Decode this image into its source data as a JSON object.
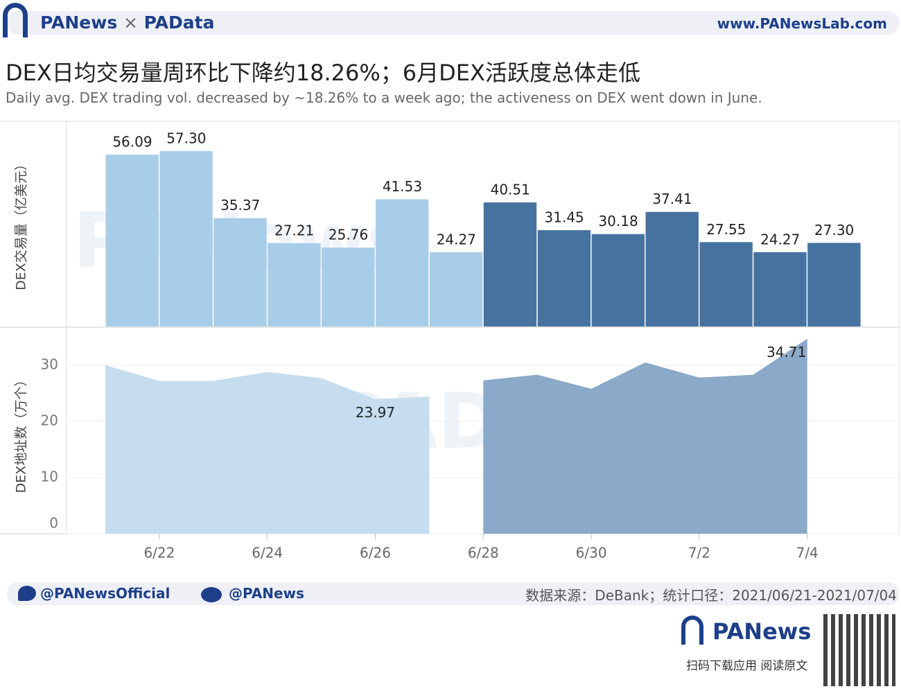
{
  "header": {
    "brand_left": "PANews",
    "brand_right": "PAData",
    "separator": "×",
    "url": "www.PANewsLab.com"
  },
  "title": "DEX日均交易量周环比下降约18.26%；6月DEX活跃度总体走低",
  "subtitle": "Daily avg. DEX trading vol. decreased by ~18.26% to a week ago; the activeness on DEX went down in June.",
  "watermarks": [
    "PANews",
    "PAData"
  ],
  "chart_data": [
    {
      "type": "bar",
      "ylabel": "DEX交易量（亿美元）",
      "ylim": [
        0,
        67
      ],
      "series": [
        {
          "color": "#a8cde8",
          "values": [
            56.09,
            57.3,
            35.37,
            27.21,
            25.76,
            41.53,
            24.27,
            null,
            null,
            null,
            null,
            null,
            null,
            null
          ],
          "value_labels": [
            "56.09",
            "57.30",
            "35.37",
            "27.21",
            "25.76",
            "41.53",
            "24.27",
            null,
            null,
            null,
            null,
            null,
            null,
            null
          ]
        },
        {
          "color": "#4672a0",
          "values": [
            null,
            null,
            null,
            null,
            null,
            null,
            null,
            40.51,
            31.45,
            30.18,
            37.41,
            27.55,
            24.27,
            27.3
          ],
          "value_labels": [
            null,
            null,
            null,
            null,
            null,
            null,
            null,
            "40.51",
            "31.45",
            "30.18",
            "37.41",
            "27.55",
            "24.27",
            "27.30"
          ]
        }
      ]
    },
    {
      "type": "area",
      "ylabel": "DEX地址数（万个）",
      "ylim": [
        0,
        36.4
      ],
      "yticks": [
        0,
        10,
        20,
        30
      ],
      "grid": true,
      "categories": [
        null,
        "6/22",
        null,
        "6/24",
        null,
        "6/26",
        null,
        "6/28",
        null,
        "6/30",
        null,
        "7/2",
        null,
        "7/4"
      ],
      "series": [
        {
          "color": "#c5ddef",
          "values": [
            30.0,
            27.2,
            27.2,
            28.8,
            27.7,
            23.97,
            24.4,
            null,
            null,
            null,
            null,
            null,
            null,
            null
          ],
          "value_labels": [
            null,
            null,
            null,
            null,
            null,
            "23.97",
            null,
            null,
            null,
            null,
            null,
            null,
            null,
            null
          ]
        },
        {
          "color": "#8ba9c8",
          "values": [
            null,
            null,
            null,
            null,
            null,
            null,
            null,
            27.3,
            28.3,
            25.8,
            30.5,
            27.8,
            28.3,
            34.71
          ],
          "value_labels": [
            null,
            null,
            null,
            null,
            null,
            null,
            null,
            null,
            null,
            null,
            null,
            null,
            null,
            "34.71"
          ]
        }
      ]
    }
  ],
  "footer": {
    "twitter": "@PANewsOfficial",
    "weibo": "@PANews",
    "source": "数据来源：DeBank；统计口径：2021/06/21-2021/07/04",
    "app_brand": "PANews",
    "app_text": "扫码下载应用  阅读原文"
  }
}
